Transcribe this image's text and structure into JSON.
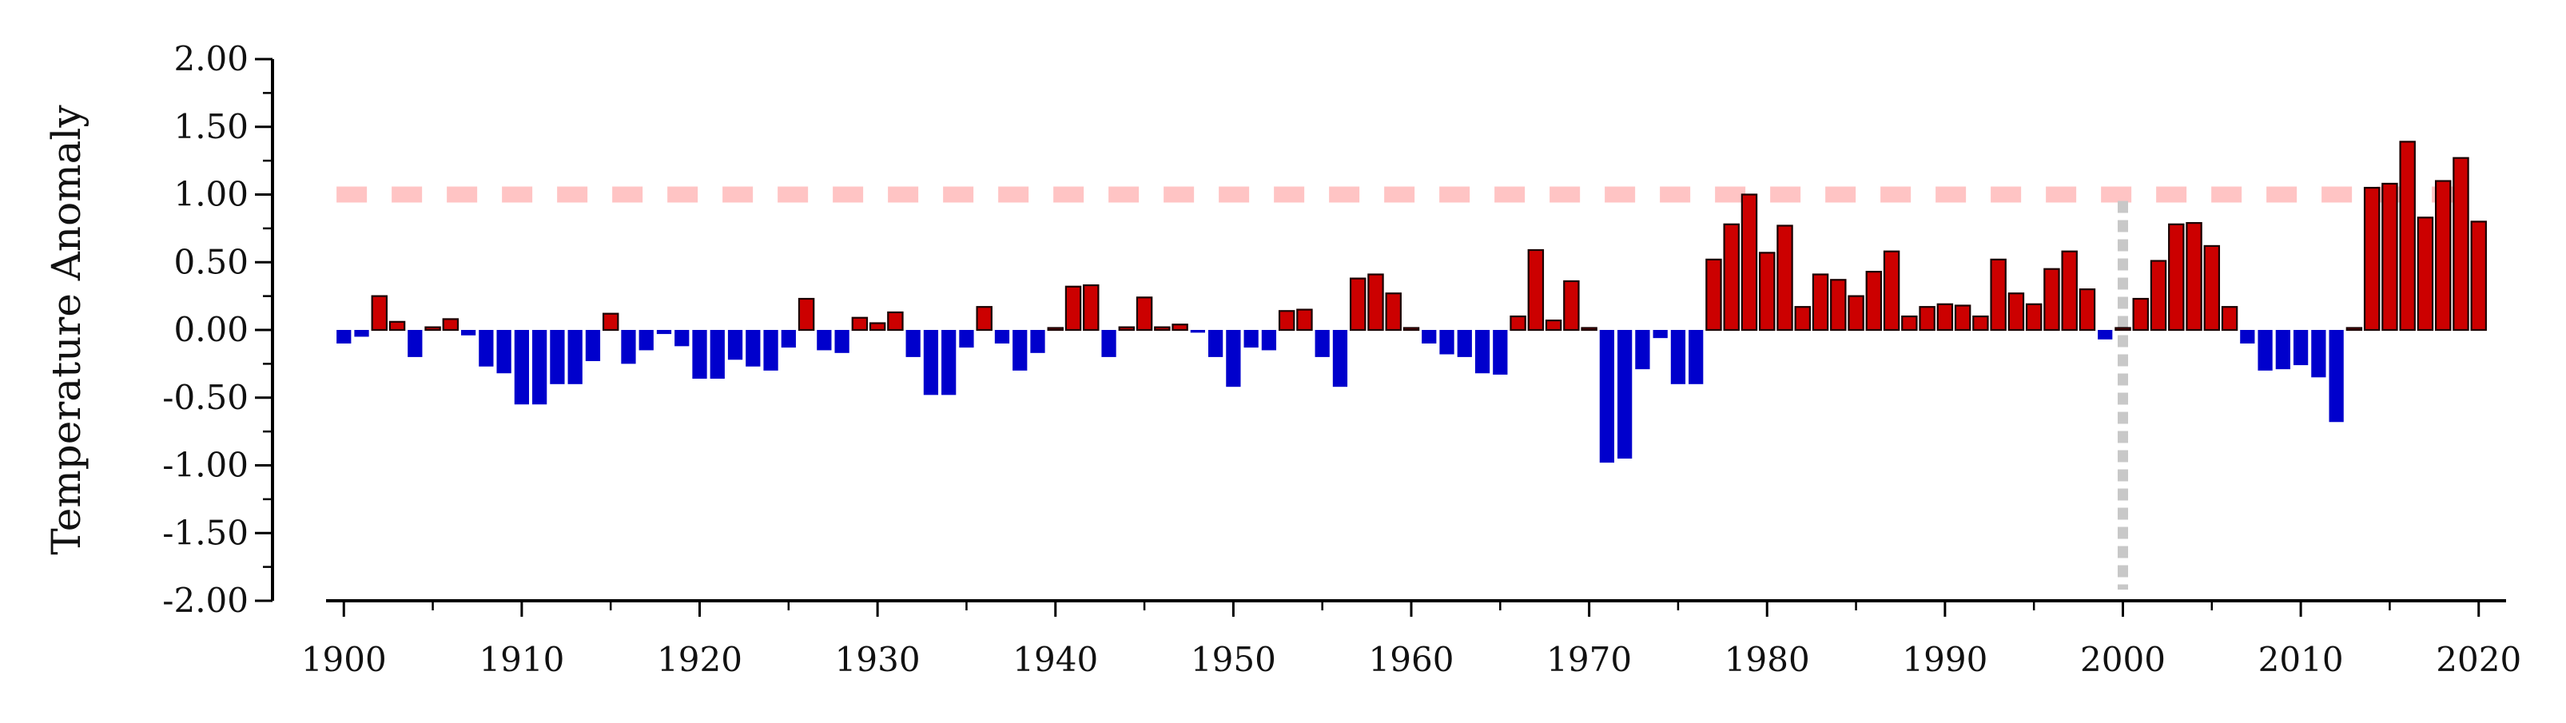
{
  "chart_data": {
    "type": "bar",
    "title": "",
    "xlabel": "",
    "ylabel": "Temperature Anomaly",
    "xlim": [
      1899,
      2021
    ],
    "ylim": [
      -2.0,
      2.0
    ],
    "x_ticks": [
      1900,
      1910,
      1920,
      1930,
      1940,
      1950,
      1960,
      1970,
      1980,
      1990,
      2000,
      2010,
      2020
    ],
    "x_tick_labels": [
      "1900",
      "1910",
      "1920",
      "1930",
      "1940",
      "1950",
      "1960",
      "1970",
      "1980",
      "1990",
      "2000",
      "2010",
      "2020"
    ],
    "x_minor_tick_step": 5,
    "y_ticks": [
      2.0,
      1.5,
      1.0,
      0.5,
      0.0,
      -0.5,
      -1.0,
      -1.5,
      -2.0
    ],
    "y_tick_labels": [
      "2.00",
      "1.50",
      "1.00",
      "0.50",
      "0.00",
      "-0.50",
      "-1.00",
      "-1.50",
      "-2.00"
    ],
    "y_minor_tick_step": 0.25,
    "grid": false,
    "legend": "none",
    "colors": {
      "positive": "#cc0000",
      "negative": "#0000cc",
      "threshold_line": "#ffc4c4",
      "reference_line": "#c8c8c8",
      "axis": "#000000"
    },
    "reference_lines": [
      {
        "orientation": "horizontal",
        "value": 1.0,
        "style": "dashed"
      },
      {
        "orientation": "vertical",
        "value": 2000,
        "style": "dotted"
      }
    ],
    "x": [
      1900,
      1901,
      1902,
      1903,
      1904,
      1905,
      1906,
      1907,
      1908,
      1909,
      1910,
      1911,
      1912,
      1913,
      1914,
      1915,
      1916,
      1917,
      1918,
      1919,
      1920,
      1921,
      1922,
      1923,
      1924,
      1925,
      1926,
      1927,
      1928,
      1929,
      1930,
      1931,
      1932,
      1933,
      1934,
      1935,
      1936,
      1937,
      1938,
      1939,
      1940,
      1941,
      1942,
      1943,
      1944,
      1945,
      1946,
      1947,
      1948,
      1949,
      1950,
      1951,
      1952,
      1953,
      1954,
      1955,
      1956,
      1957,
      1958,
      1959,
      1960,
      1961,
      1962,
      1963,
      1964,
      1965,
      1966,
      1967,
      1968,
      1969,
      1970,
      1971,
      1972,
      1973,
      1974,
      1975,
      1976,
      1977,
      1978,
      1979,
      1980,
      1981,
      1982,
      1983,
      1984,
      1985,
      1986,
      1987,
      1988,
      1989,
      1990,
      1991,
      1992,
      1993,
      1994,
      1995,
      1996,
      1997,
      1998,
      1999,
      2000,
      2001,
      2002,
      2003,
      2004,
      2005,
      2006,
      2007,
      2008,
      2009,
      2010,
      2011,
      2012,
      2013,
      2014,
      2015,
      2016,
      2017,
      2018,
      2019,
      2020
    ],
    "values": [
      -0.1,
      -0.05,
      0.25,
      0.06,
      -0.2,
      0.02,
      0.08,
      -0.04,
      -0.27,
      -0.32,
      -0.55,
      -0.55,
      -0.4,
      -0.4,
      -0.23,
      0.12,
      -0.25,
      -0.15,
      -0.03,
      -0.12,
      -0.36,
      -0.36,
      -0.22,
      -0.27,
      -0.3,
      -0.13,
      0.23,
      -0.15,
      -0.17,
      0.09,
      0.05,
      0.13,
      -0.2,
      -0.48,
      -0.48,
      -0.13,
      0.17,
      -0.1,
      -0.3,
      -0.17,
      0.0,
      0.32,
      0.33,
      -0.2,
      0.02,
      0.24,
      0.02,
      0.04,
      -0.02,
      -0.2,
      -0.42,
      -0.13,
      -0.15,
      0.14,
      0.15,
      -0.2,
      -0.42,
      0.38,
      0.41,
      0.27,
      0.01,
      -0.1,
      -0.18,
      -0.2,
      -0.32,
      -0.33,
      0.1,
      0.59,
      0.07,
      0.36,
      0.01,
      -0.98,
      -0.95,
      -0.29,
      -0.06,
      -0.4,
      -0.4,
      0.52,
      0.78,
      1.0,
      0.57,
      0.77,
      0.17,
      0.41,
      0.37,
      0.25,
      0.43,
      0.58,
      0.1,
      0.17,
      0.19,
      0.18,
      0.1,
      0.52,
      0.27,
      0.19,
      0.45,
      0.58,
      0.3,
      -0.07,
      0.0,
      0.23,
      0.51,
      0.78,
      0.79,
      0.62,
      0.17,
      -0.1,
      -0.3,
      -0.29,
      -0.26,
      -0.35,
      -0.68,
      0.0,
      1.05,
      1.08,
      1.39,
      0.83,
      1.1,
      1.27,
      0.8
    ]
  }
}
